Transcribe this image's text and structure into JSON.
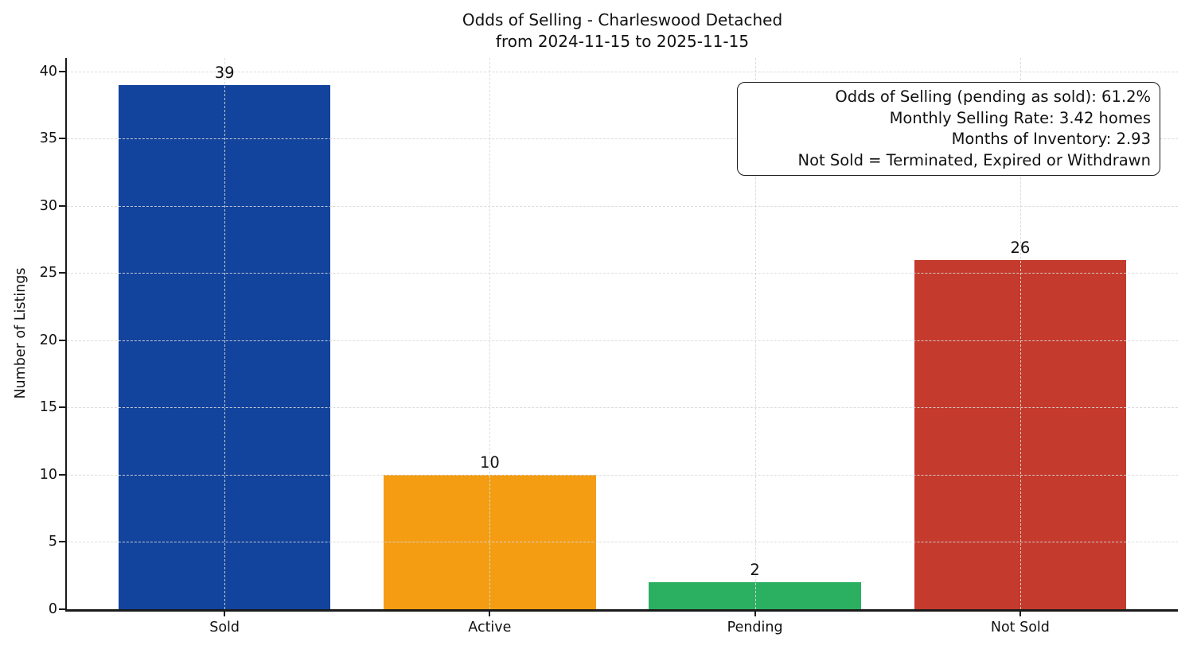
{
  "chart_data": {
    "type": "bar",
    "title": "Odds of Selling - Charleswood Detached",
    "subtitle": "from 2024-11-15 to 2025-11-15",
    "categories": [
      "Sold",
      "Active",
      "Pending",
      "Not Sold"
    ],
    "values": [
      39,
      10,
      2,
      26
    ],
    "colors": [
      "#12439d",
      "#f49d13",
      "#2bb062",
      "#c43a2c"
    ],
    "xlabel": "",
    "ylabel": "Number of Listings",
    "ylim": [
      0,
      41
    ],
    "yticks": [
      0,
      5,
      10,
      15,
      20,
      25,
      30,
      35,
      40
    ],
    "grid": "dashed light-gray horizontal and vertical gridlines",
    "legend_position": "none",
    "annotations": [
      "Odds of Selling (pending as sold): 61.2%",
      "Monthly Selling Rate: 3.42 homes",
      "Months of Inventory: 2.93",
      "Not Sold = Terminated, Expired or Withdrawn"
    ]
  },
  "style": {
    "grid_color": "#d8d8d8",
    "spine_color": "#1a1a1a",
    "text_color": "#111111",
    "background": "#ffffff"
  }
}
